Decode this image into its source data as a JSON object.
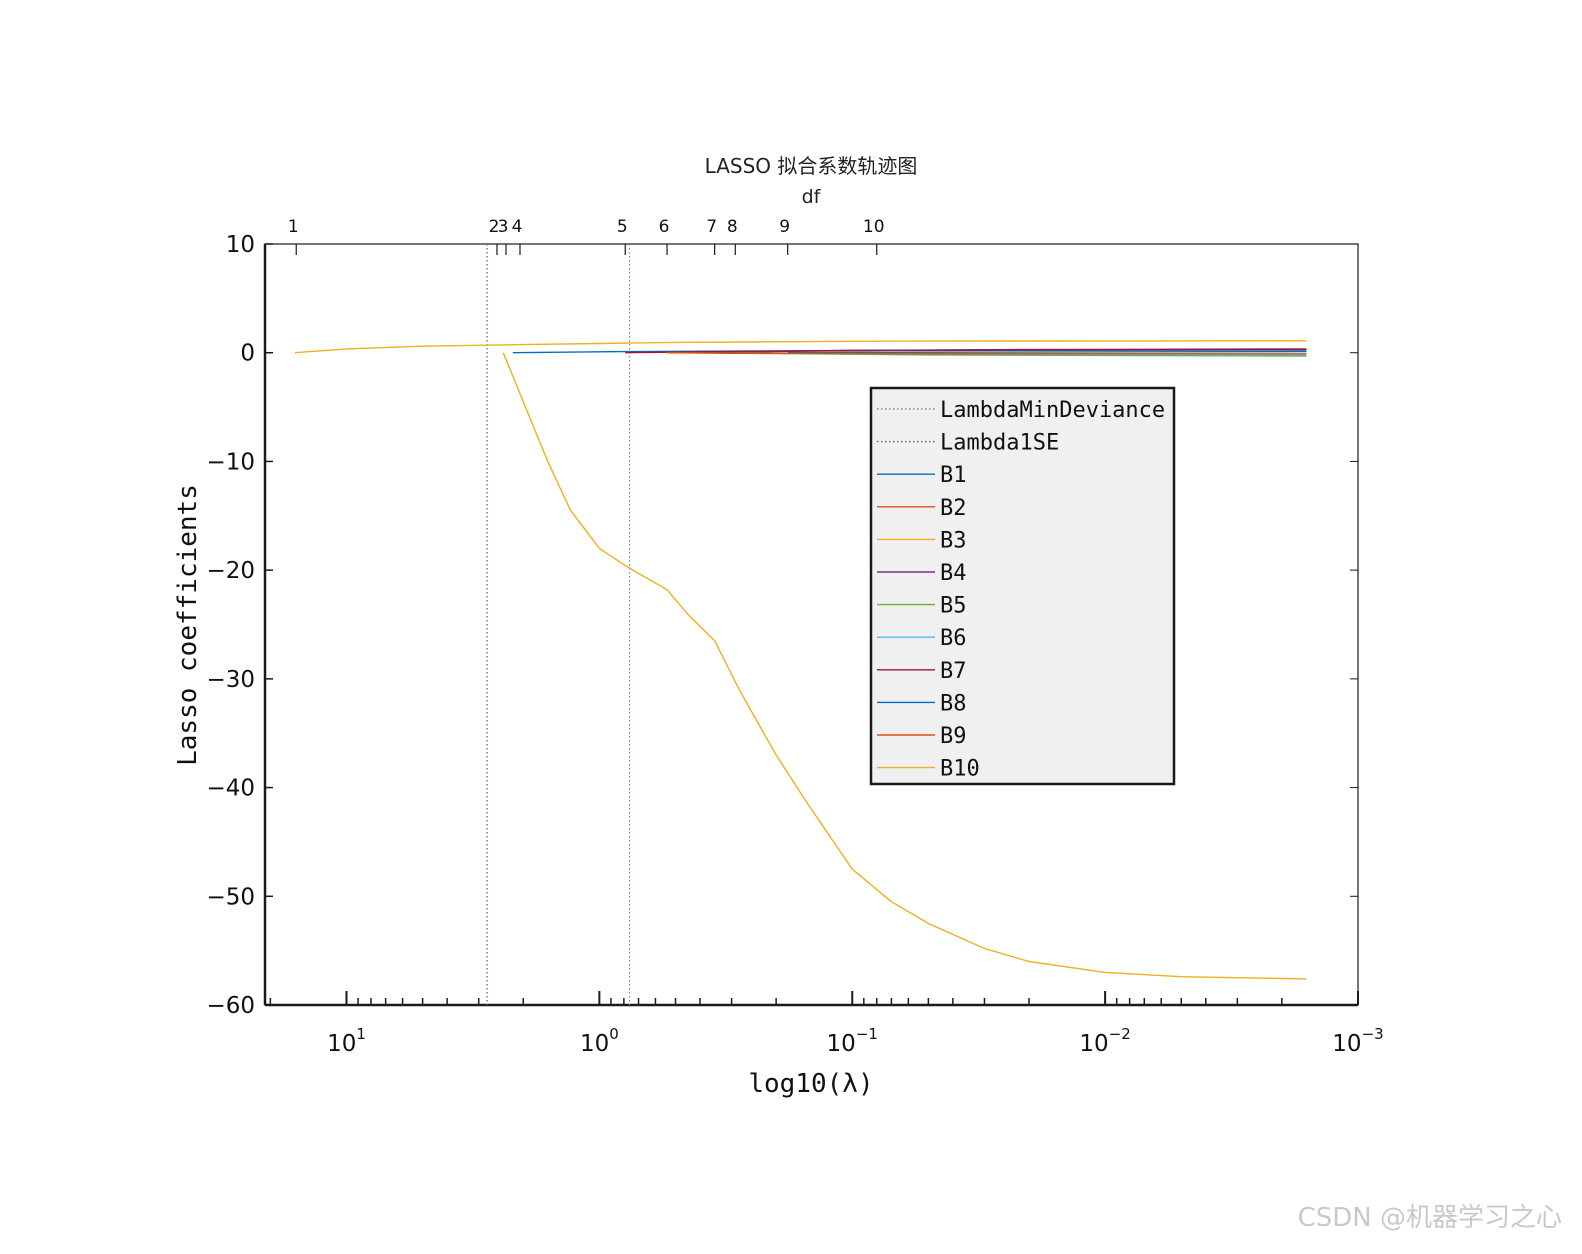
{
  "watermark": "CSDN @机器学习之心",
  "chart_data": {
    "type": "line",
    "title": "LASSO 拟合系数轨迹图",
    "top_axis_label": "df",
    "xlabel": "log10(λ)",
    "ylabel": "Lasso coefficients",
    "x_scale": "log",
    "x_reversed": true,
    "xlim": [
      21,
      0.001
    ],
    "ylim": [
      -60,
      10
    ],
    "y_ticks": [
      10,
      0,
      -10,
      -20,
      -30,
      -40,
      -50,
      -60
    ],
    "y_tick_labels": [
      "10",
      "0",
      "−10",
      "−20",
      "−30",
      "−40",
      "−50",
      "−60"
    ],
    "x_ticks": [
      {
        "value": 10,
        "mantissa": "10",
        "exp": "1"
      },
      {
        "value": 1,
        "mantissa": "10",
        "exp": "0"
      },
      {
        "value": 0.1,
        "mantissa": "10",
        "exp": "−1"
      },
      {
        "value": 0.01,
        "mantissa": "10",
        "exp": "−2"
      },
      {
        "value": 0.001,
        "mantissa": "10",
        "exp": "−3"
      }
    ],
    "df_ticks": [
      {
        "value": 15.8,
        "label": "1"
      },
      {
        "value": 2.54,
        "label": "2"
      },
      {
        "value": 2.34,
        "label": "3"
      },
      {
        "value": 2.06,
        "label": "4"
      },
      {
        "value": 0.79,
        "label": "5"
      },
      {
        "value": 0.54,
        "label": "6"
      },
      {
        "value": 0.35,
        "label": "7"
      },
      {
        "value": 0.29,
        "label": "8"
      },
      {
        "value": 0.18,
        "label": "9"
      },
      {
        "value": 0.08,
        "label": "10"
      }
    ],
    "vlines": [
      {
        "name": "LambdaMinDeviance",
        "value": 0.76,
        "color": "#3fb83f",
        "style": "dotted"
      },
      {
        "name": "Lambda1SE",
        "value": 2.78,
        "color": "#5a5aa8",
        "style": "dotted"
      }
    ],
    "series": [
      {
        "name": "B1",
        "color": "#0072BD",
        "x": [
          2.2,
          0.8,
          0.3,
          0.1,
          0.03,
          0.0016
        ],
        "y": [
          0,
          0.1,
          0.15,
          0.2,
          0.22,
          0.25
        ]
      },
      {
        "name": "B2",
        "color": "#D95319",
        "x": [
          0.54,
          0.3,
          0.1,
          0.03,
          0.0016
        ],
        "y": [
          0,
          -0.05,
          -0.1,
          -0.12,
          -0.15
        ]
      },
      {
        "name": "B3",
        "color": "#EDB120",
        "x": [
          16,
          10,
          5,
          2,
          1,
          0.5,
          0.2,
          0.1,
          0.05,
          0.02,
          0.0016
        ],
        "y": [
          0,
          0.35,
          0.6,
          0.75,
          0.85,
          0.95,
          1.0,
          1.05,
          1.07,
          1.08,
          1.1
        ]
      },
      {
        "name": "B4",
        "color": "#7E2F8E",
        "x": [
          0.35,
          0.2,
          0.1,
          0.03,
          0.0016
        ],
        "y": [
          0,
          0.1,
          0.2,
          0.28,
          0.35
        ]
      },
      {
        "name": "B5",
        "color": "#77AC30",
        "x": [
          0.29,
          0.15,
          0.05,
          0.0016
        ],
        "y": [
          0,
          -0.1,
          -0.2,
          -0.3
        ]
      },
      {
        "name": "B6",
        "color": "#4DBEEE",
        "x": [
          0.08,
          0.03,
          0.0016
        ],
        "y": [
          0,
          -0.1,
          -0.2
        ]
      },
      {
        "name": "B7",
        "color": "#A2142F",
        "x": [
          0.79,
          0.3,
          0.1,
          0.03,
          0.0016
        ],
        "y": [
          0,
          0.1,
          0.2,
          0.25,
          0.3
        ]
      },
      {
        "name": "B8",
        "color": "#0072BD",
        "x": [
          0.18,
          0.05,
          0.0016
        ],
        "y": [
          0,
          0.05,
          0.1
        ]
      },
      {
        "name": "B9",
        "color": "#D95319",
        "x": [
          0.54,
          0.2,
          0.05,
          0.0016
        ],
        "y": [
          0,
          -0.05,
          -0.08,
          -0.1
        ]
      },
      {
        "name": "B10",
        "color": "#EDB120",
        "x": [
          2.4,
          2.0,
          1.6,
          1.3,
          1.0,
          0.8,
          0.7,
          0.54,
          0.45,
          0.35,
          0.28,
          0.2,
          0.15,
          0.1,
          0.07,
          0.05,
          0.03,
          0.02,
          0.01,
          0.005,
          0.0016
        ],
        "y": [
          0,
          -4.5,
          -10,
          -14.5,
          -18,
          -19.5,
          -20.3,
          -21.8,
          -24.0,
          -26.5,
          -31.0,
          -37.0,
          -41.5,
          -47.5,
          -50.5,
          -52.5,
          -54.8,
          -56.0,
          -57.0,
          -57.4,
          -57.6
        ]
      }
    ],
    "legend": {
      "location": "inside, right of center",
      "entries": [
        "LambdaMinDeviance",
        "Lambda1SE",
        "B1",
        "B2",
        "B3",
        "B4",
        "B5",
        "B6",
        "B7",
        "B8",
        "B9",
        "B10"
      ]
    },
    "grid": false
  }
}
